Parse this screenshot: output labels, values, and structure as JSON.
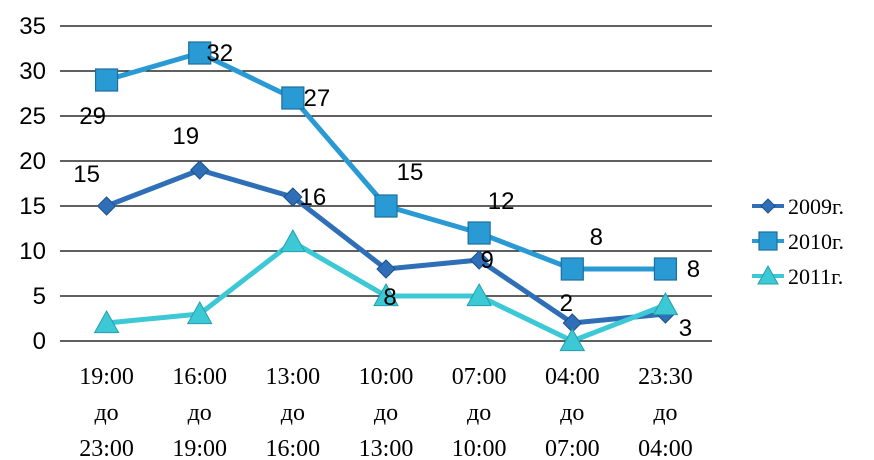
{
  "chart_data": {
    "type": "line",
    "title": "",
    "xlabel": "",
    "ylabel": "",
    "ylim": [
      0,
      35
    ],
    "yticks": [
      "0",
      "5",
      "10",
      "15",
      "20",
      "25",
      "30",
      "35"
    ],
    "grid": "horizontal",
    "legend_position": "right",
    "categories": [
      [
        "19:00",
        "до",
        "23:00"
      ],
      [
        "16:00",
        "до",
        "19:00"
      ],
      [
        "13:00",
        "до",
        "16:00"
      ],
      [
        "10:00",
        "до",
        "13:00"
      ],
      [
        "07:00",
        "до",
        "10:00"
      ],
      [
        "04:00",
        "до",
        "07:00"
      ],
      [
        "23:30",
        "до",
        "04:00"
      ]
    ],
    "series": [
      {
        "name": "2009г.",
        "color": "#2e6fb7",
        "marker": "diamond",
        "values": [
          15,
          19,
          16,
          8,
          9,
          2,
          3
        ],
        "labels": [
          "15",
          "19",
          "16",
          "8",
          "9",
          "2",
          "3"
        ]
      },
      {
        "name": "2010г.",
        "color": "#2a9ad4",
        "marker": "square",
        "values": [
          29,
          32,
          27,
          15,
          12,
          8,
          8
        ],
        "labels": [
          "29",
          "32",
          "27",
          "15",
          "12",
          "8",
          "8"
        ]
      },
      {
        "name": "2011г.",
        "color": "#3cc8d4",
        "marker": "triangle",
        "values": [
          2,
          3,
          11,
          5,
          5,
          0,
          4
        ],
        "labels": []
      }
    ]
  }
}
